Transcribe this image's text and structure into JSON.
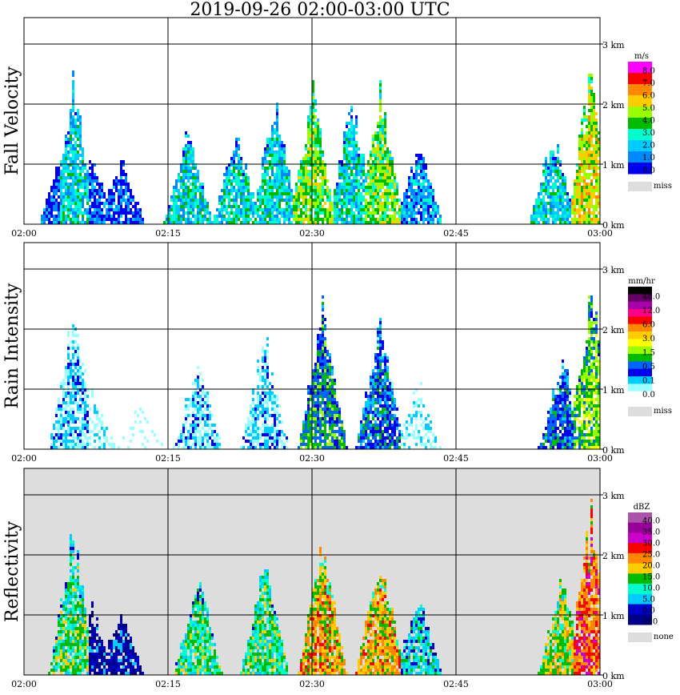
{
  "title": "2019-09-26   02:00-03:00 UTC",
  "x_ticks": [
    "02:00",
    "02:15",
    "02:30",
    "02:45",
    "03:00"
  ],
  "y_ticks": [
    "3 km",
    "2 km",
    "1 km",
    "0 km"
  ],
  "chart_data": [
    {
      "type": "heatmap",
      "ylabel": "Fall Velocity",
      "x_range": [
        "02:00",
        "03:00"
      ],
      "ylim_km": [
        0,
        3
      ],
      "grid": true,
      "background": "#ffffff",
      "colorbar": {
        "unit": "m/s",
        "levels": [
          "8.0",
          "7.0",
          "6.0",
          "5.0",
          "4.0",
          "3.0",
          "2.0",
          "1.0",
          "0.0"
        ],
        "colors": [
          "#ff00ff",
          "#ff0000",
          "#ff8800",
          "#ffcc00",
          "#99ff00",
          "#00bb00",
          "#00ffcc",
          "#00ccff",
          "#0088ff",
          "#0000ee"
        ],
        "missing_label": "miss",
        "missing_color": "#dddddd"
      },
      "echo_profile_km": [
        {
          "t": "02:04",
          "top_km": 1.3,
          "level": 1
        },
        {
          "t": "02:05",
          "top_km": 2.3,
          "level": 3
        },
        {
          "t": "02:07",
          "top_km": 1.1,
          "level": 1
        },
        {
          "t": "02:10",
          "top_km": 1.1,
          "level": 1
        },
        {
          "t": "02:17",
          "top_km": 1.6,
          "level": 3
        },
        {
          "t": "02:22",
          "top_km": 1.5,
          "level": 3
        },
        {
          "t": "02:26",
          "top_km": 2.0,
          "level": 3
        },
        {
          "t": "02:30",
          "top_km": 2.2,
          "level": 5
        },
        {
          "t": "02:34",
          "top_km": 2.0,
          "level": 3
        },
        {
          "t": "02:37",
          "top_km": 2.1,
          "level": 5
        },
        {
          "t": "02:41",
          "top_km": 1.3,
          "level": 2
        },
        {
          "t": "02:55",
          "top_km": 1.5,
          "level": 3
        },
        {
          "t": "02:59",
          "top_km": 2.6,
          "level": 6
        }
      ]
    },
    {
      "type": "heatmap",
      "ylabel": "Rain Intensity",
      "x_range": [
        "02:00",
        "03:00"
      ],
      "ylim_km": [
        0,
        3
      ],
      "grid": true,
      "background": "#ffffff",
      "colorbar": {
        "unit": "mm/hr",
        "levels": [
          "48.0",
          "12.0",
          "6.0",
          "3.0",
          "1.5",
          "0.5",
          "0.1",
          "0.0"
        ],
        "colors": [
          "#000000",
          "#660066",
          "#aa00aa",
          "#ff0088",
          "#ff0000",
          "#ff8800",
          "#ffcc00",
          "#ffff00",
          "#99ff00",
          "#00bb00",
          "#0066ff",
          "#0000ee",
          "#00ccff",
          "#99ffff",
          "#ffffff"
        ],
        "missing_label": "miss",
        "missing_color": "#dddddd"
      },
      "echo_profile_km": [
        {
          "t": "02:05",
          "top_km": 2.3,
          "level": 2
        },
        {
          "t": "02:07",
          "top_km": 1.0,
          "level": 1
        },
        {
          "t": "02:12",
          "top_km": 0.9,
          "level": 0
        },
        {
          "t": "02:18",
          "top_km": 1.5,
          "level": 2
        },
        {
          "t": "02:25",
          "top_km": 1.9,
          "level": 2
        },
        {
          "t": "02:31",
          "top_km": 2.3,
          "level": 5
        },
        {
          "t": "02:37",
          "top_km": 2.0,
          "level": 4
        },
        {
          "t": "02:41",
          "top_km": 1.2,
          "level": 1
        },
        {
          "t": "02:56",
          "top_km": 1.5,
          "level": 4
        },
        {
          "t": "02:59",
          "top_km": 2.6,
          "level": 6
        }
      ]
    },
    {
      "type": "heatmap",
      "ylabel": "Reflectivity",
      "x_range": [
        "02:00",
        "03:00"
      ],
      "ylim_km": [
        0,
        3
      ],
      "grid": true,
      "background": "#dddddd",
      "colorbar": {
        "unit": "dBZ",
        "levels": [
          "40.0",
          "35.0",
          "30.0",
          "25.0",
          "20.0",
          "15.0",
          "10.0",
          "5.0",
          "0.0",
          "-5.0"
        ],
        "colors": [
          "#aa55aa",
          "#990099",
          "#cc00cc",
          "#ff0000",
          "#ff8800",
          "#ffcc00",
          "#00bb00",
          "#00ffcc",
          "#00ccff",
          "#0000cc",
          "#000088"
        ],
        "missing_label": "none",
        "missing_color": "#dddddd"
      },
      "echo_profile_km": [
        {
          "t": "02:05",
          "top_km": 2.3,
          "level": 4
        },
        {
          "t": "02:07",
          "top_km": 1.1,
          "level": 1
        },
        {
          "t": "02:10",
          "top_km": 1.0,
          "level": 1
        },
        {
          "t": "02:18",
          "top_km": 1.6,
          "level": 4
        },
        {
          "t": "02:25",
          "top_km": 1.9,
          "level": 4
        },
        {
          "t": "02:31",
          "top_km": 2.2,
          "level": 6
        },
        {
          "t": "02:37",
          "top_km": 2.0,
          "level": 6
        },
        {
          "t": "02:41",
          "top_km": 1.3,
          "level": 3
        },
        {
          "t": "02:56",
          "top_km": 1.6,
          "level": 5
        },
        {
          "t": "02:59",
          "top_km": 2.6,
          "level": 7
        }
      ]
    }
  ]
}
